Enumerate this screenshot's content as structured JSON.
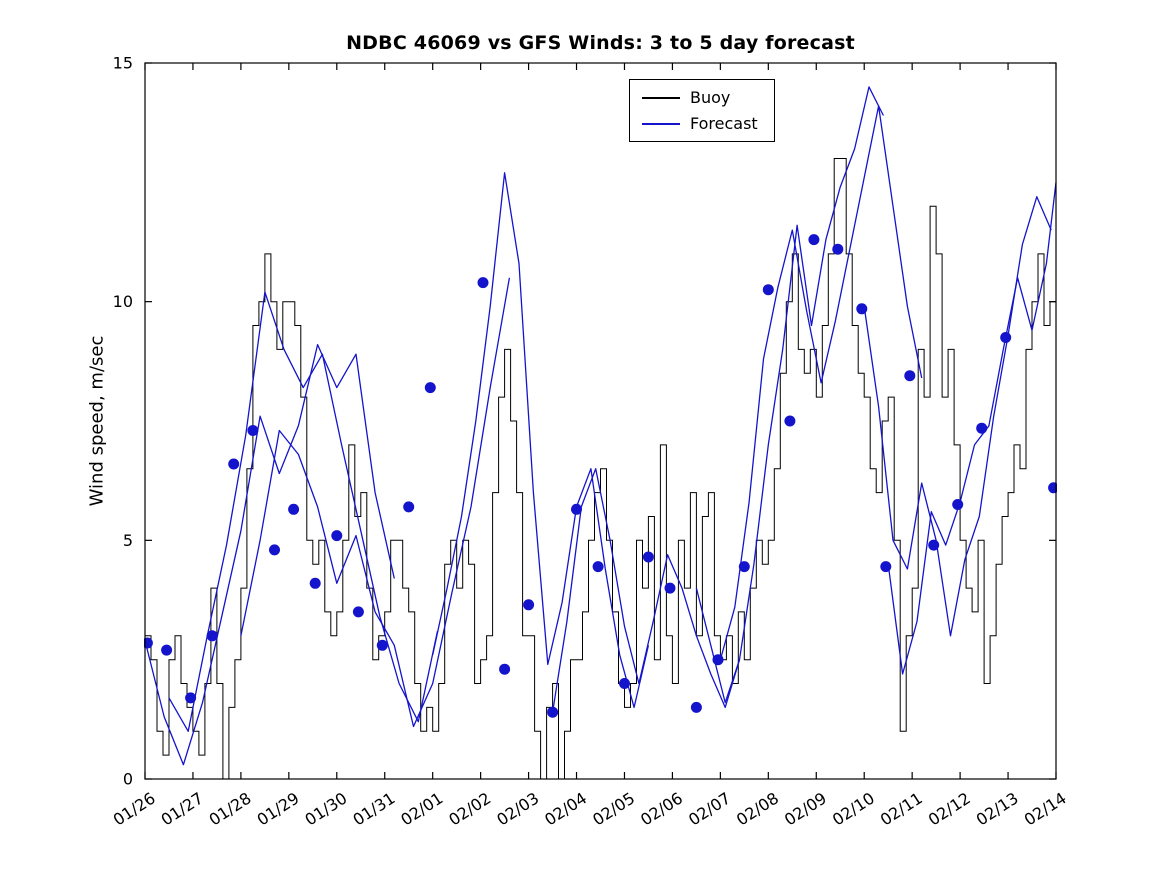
{
  "title": "NDBC 46069 vs GFS Winds: 3 to 5 day forecast",
  "ylabel": "Wind speed, m/sec",
  "legend": {
    "buoy": "Buoy",
    "forecast": "Forecast"
  },
  "colors": {
    "buoy": "#000000",
    "forecast": "#1414cc",
    "axis": "#000000",
    "background": "#ffffff"
  },
  "chart_data": {
    "type": "line",
    "title": "NDBC 46069 vs GFS Winds: 3 to 5 day forecast",
    "xlabel": "",
    "ylabel": "Wind speed, m/sec",
    "ylim": [
      0,
      15
    ],
    "yticks": [
      0,
      5,
      10,
      15
    ],
    "ytick_labels": [
      "0",
      "5",
      "10",
      "15"
    ],
    "xlim": [
      0,
      19
    ],
    "x_unit": "days since 01/26",
    "xtick_labels": [
      "01/26",
      "01/27",
      "01/28",
      "01/29",
      "01/30",
      "01/31",
      "02/01",
      "02/02",
      "02/03",
      "02/04",
      "02/05",
      "02/06",
      "02/07",
      "02/08",
      "02/09",
      "02/10",
      "02/11",
      "02/12",
      "02/13",
      "02/14"
    ],
    "grid": false,
    "legend": [
      "Buoy",
      "Forecast"
    ],
    "legend_position": "upper center",
    "series": [
      {
        "name": "Buoy",
        "style": "stairs",
        "color_key": "buoy",
        "x_start": 0,
        "x_step": 0.125,
        "values": [
          3,
          2.5,
          1,
          0.5,
          2.5,
          3,
          2,
          1.5,
          1,
          0.5,
          2,
          4,
          2,
          0,
          1.5,
          2.5,
          4,
          6.5,
          9.5,
          10,
          11,
          10,
          9,
          10,
          10,
          9.5,
          8,
          5,
          4.5,
          5,
          3.5,
          3,
          3.5,
          5,
          7,
          5.5,
          6,
          4,
          2.5,
          3,
          3.5,
          5,
          5,
          4,
          3.5,
          2,
          1,
          1.5,
          1,
          2,
          4.5,
          5,
          4,
          5,
          4.5,
          2,
          2.5,
          3,
          6,
          8,
          9,
          7.5,
          6,
          3,
          3,
          1,
          0,
          1.5,
          2,
          0,
          1,
          2.5,
          2.5,
          3.5,
          5,
          6,
          6.5,
          5,
          3.5,
          2,
          1.5,
          2,
          5,
          4,
          5.5,
          2.5,
          7,
          3,
          2,
          5,
          4,
          6,
          3,
          5.5,
          6,
          3,
          2.5,
          3,
          2,
          3.5,
          2.5,
          4,
          5,
          4.5,
          5,
          6.5,
          8.5,
          10,
          11,
          9,
          8.5,
          9,
          8,
          9.5,
          11,
          13,
          13,
          11,
          9.5,
          8.5,
          8,
          6.5,
          6,
          7.5,
          8,
          5,
          1,
          3,
          4,
          9,
          8,
          12,
          11,
          8,
          9,
          7,
          5,
          4,
          3.5,
          5,
          2,
          3,
          4.5,
          5.5,
          6,
          7,
          6.5,
          9,
          10,
          11,
          9.5,
          10,
          10
        ]
      },
      {
        "name": "Forecast",
        "style": "line",
        "color_key": "forecast",
        "segments": [
          {
            "x": [
              0,
              0.4,
              0.8,
              1.2,
              1.6,
              2.0,
              2.4,
              2.8,
              3.2,
              3.6,
              4.0,
              4.4,
              4.8,
              5.2
            ],
            "y": [
              2.9,
              1.3,
              0.3,
              1.6,
              3.4,
              5.2,
              7.6,
              6.4,
              7.4,
              9.1,
              8.2,
              8.9,
              6.0,
              4.2
            ]
          },
          {
            "x": [
              0.5,
              0.9,
              1.3,
              1.7,
              2.1,
              2.5,
              2.9,
              3.3,
              3.7,
              4.1,
              4.5,
              4.9,
              5.3,
              5.7,
              6.1
            ],
            "y": [
              1.7,
              1.0,
              3.0,
              4.9,
              7.2,
              10.2,
              9.0,
              8.2,
              8.9,
              7.0,
              5.2,
              3.4,
              2.0,
              1.2,
              3.1
            ]
          },
          {
            "x": [
              2.0,
              2.4,
              2.8,
              3.2,
              3.6,
              4.0,
              4.4,
              4.8,
              5.2,
              5.6,
              6.0,
              6.4,
              6.8,
              7.2,
              7.6
            ],
            "y": [
              3.0,
              5.0,
              7.3,
              6.8,
              5.7,
              4.1,
              5.1,
              3.5,
              2.8,
              1.1,
              2.0,
              3.9,
              5.7,
              8.2,
              10.5
            ]
          },
          {
            "x": [
              6.0,
              6.3,
              6.6,
              6.9,
              7.2,
              7.5,
              7.8,
              8.1,
              8.4,
              8.7,
              9.0,
              9.3,
              9.6,
              9.9,
              10.2,
              10.5
            ],
            "y": [
              2.6,
              4.0,
              5.5,
              7.5,
              9.9,
              12.7,
              10.8,
              6.0,
              2.4,
              3.7,
              5.7,
              6.5,
              4.4,
              2.6,
              1.5,
              2.8
            ]
          },
          {
            "x": [
              8.5,
              8.8,
              9.1,
              9.4,
              9.7,
              10.0,
              10.3,
              10.6,
              10.9,
              11.2,
              11.5,
              11.8,
              12.1,
              12.4
            ],
            "y": [
              1.4,
              3.3,
              5.7,
              6.5,
              5.0,
              3.2,
              2.0,
              3.3,
              4.7,
              4.0,
              3.0,
              2.2,
              1.5,
              2.5
            ]
          },
          {
            "x": [
              11.5,
              11.8,
              12.1,
              12.4,
              12.7,
              13.0,
              13.3,
              13.6,
              13.9,
              14.2,
              14.5,
              14.8,
              15.1,
              15.4
            ],
            "y": [
              4.0,
              2.8,
              1.6,
              2.5,
              4.5,
              7.0,
              9.0,
              11.6,
              9.5,
              11.3,
              12.4,
              13.2,
              14.5,
              13.9
            ]
          },
          {
            "x": [
              12.0,
              12.3,
              12.6,
              12.9,
              13.2,
              13.5,
              13.8,
              14.1,
              14.4,
              14.7,
              15.0,
              15.3,
              15.6,
              15.9,
              16.2
            ],
            "y": [
              2.5,
              3.6,
              5.8,
              8.8,
              10.3,
              11.5,
              9.8,
              8.3,
              9.6,
              11.1,
              12.6,
              14.1,
              12.0,
              9.9,
              8.4
            ]
          },
          {
            "x": [
              15.0,
              15.3,
              15.6,
              15.9,
              16.2,
              16.5,
              16.8,
              17.1,
              17.4,
              17.7,
              18.0,
              18.3,
              18.6,
              18.9
            ],
            "y": [
              9.9,
              7.8,
              5.0,
              4.4,
              6.2,
              5.0,
              3.0,
              4.6,
              5.5,
              7.6,
              9.3,
              11.2,
              12.2,
              11.5
            ]
          },
          {
            "x": [
              15.5,
              15.8,
              16.1,
              16.4,
              16.7,
              17.0,
              17.3,
              17.6,
              17.9,
              18.2,
              18.5,
              18.8,
              19.0
            ],
            "y": [
              4.5,
              2.2,
              3.3,
              5.6,
              4.9,
              5.8,
              7.0,
              7.4,
              9.0,
              10.5,
              9.4,
              10.8,
              12.5
            ]
          }
        ]
      },
      {
        "name": "Forecast points",
        "style": "scatter",
        "color_key": "forecast",
        "marker_radius": 5.5,
        "x": [
          0.05,
          0.45,
          0.95,
          1.4,
          1.85,
          2.25,
          2.7,
          3.1,
          3.55,
          4.0,
          4.45,
          4.95,
          5.5,
          5.95,
          7.05,
          7.5,
          8.0,
          8.5,
          9.0,
          9.45,
          10.0,
          10.5,
          10.95,
          11.5,
          11.95,
          12.5,
          13.0,
          13.45,
          13.95,
          14.45,
          14.95,
          15.45,
          15.95,
          16.45,
          16.95,
          17.45,
          17.95,
          18.95
        ],
        "y": [
          2.85,
          2.7,
          1.7,
          3.0,
          6.6,
          7.3,
          4.8,
          5.65,
          4.1,
          5.1,
          3.5,
          2.8,
          5.7,
          8.2,
          10.4,
          2.3,
          3.65,
          1.4,
          5.65,
          4.45,
          2.0,
          4.65,
          4.0,
          1.5,
          2.5,
          4.45,
          10.25,
          7.5,
          11.3,
          11.1,
          9.85,
          4.45,
          8.45,
          4.9,
          5.75,
          7.35,
          9.25,
          6.1
        ]
      }
    ]
  }
}
